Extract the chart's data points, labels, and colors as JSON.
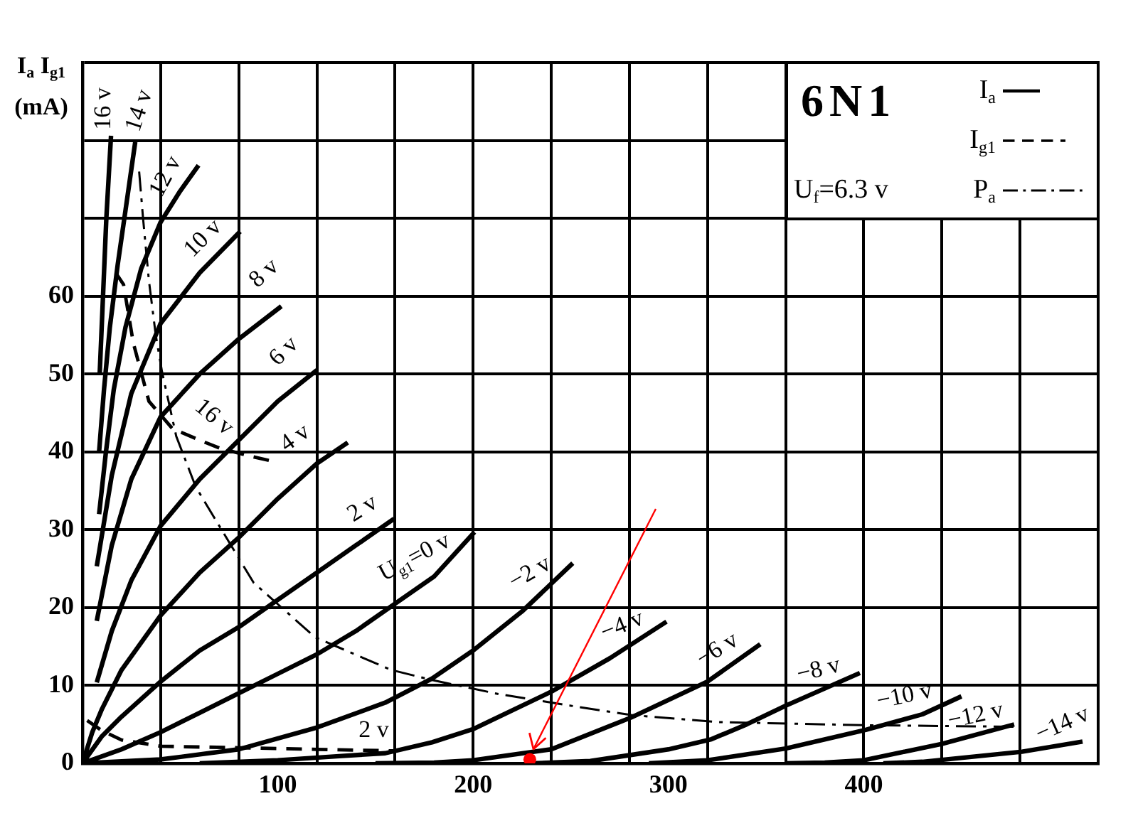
{
  "chart_data": {
    "type": "line",
    "title": "6N1",
    "ylabel": "I$_{a}$ I$_{g1}$ (mA)",
    "xlim": [
      0,
      520
    ],
    "ylim": [
      0,
      90
    ],
    "xticks": [
      {
        "value": 0,
        "label": null
      },
      {
        "value": 40,
        "label": null
      },
      {
        "value": 80,
        "label": null
      },
      100,
      {
        "value": 120,
        "label": null
      },
      {
        "value": 160,
        "label": null
      },
      200,
      {
        "value": 240,
        "label": null
      },
      {
        "value": 280,
        "label": null
      },
      300,
      {
        "value": 320,
        "label": null
      },
      {
        "value": 360,
        "label": null
      },
      400,
      {
        "value": 440,
        "label": null
      },
      {
        "value": 480,
        "label": null
      },
      {
        "value": 520,
        "label": null
      }
    ],
    "yticks": [
      0,
      10,
      20,
      30,
      40,
      50,
      60,
      {
        "value": 70,
        "label": null
      },
      {
        "value": 80,
        "label": null
      },
      {
        "value": 90,
        "label": null
      }
    ],
    "grid": true,
    "legend": "top right",
    "marker": "none",
    "series": [
      {
        "name": "I$_{a}$",
        "color": "#000000",
        "line_style": "solid",
        "x": [
          8.8,
          10.5,
          12.2,
          14.6,
          null,
          8.5,
          11,
          14,
          18,
          22,
          27,
          null,
          8.5,
          12,
          16,
          22,
          30,
          40,
          50,
          59.4,
          null,
          7.3,
          15,
          25,
          40,
          60,
          80.7,
          null,
          7.3,
          15,
          25,
          40,
          60,
          80,
          101.8,
          null,
          7.3,
          15,
          25,
          40,
          60,
          80,
          100,
          120,
          null,
          0,
          5,
          10,
          20,
          40,
          60,
          80,
          100,
          120,
          135.8,
          null,
          0,
          10,
          20,
          40,
          60,
          80,
          100,
          120,
          140,
          159.5,
          null,
          0,
          20,
          40,
          60,
          80,
          100,
          120,
          140,
          160,
          180,
          200.7,
          null,
          0,
          40,
          80,
          120,
          155,
          179,
          200,
          225,
          251,
          null,
          60,
          100,
          130,
          155,
          179,
          200,
          240,
          270,
          299,
          null,
          150,
          180,
          200,
          240,
          281,
          320,
          347,
          null,
          230,
          260,
          300,
          322,
          340,
          360,
          398,
          null,
          290,
          320,
          360,
          401,
          430,
          450,
          null,
          360,
          380,
          400,
          440,
          477,
          null,
          410,
          430,
          481,
          512
        ],
        "values": [
          50,
          60,
          70,
          80.6,
          null,
          40,
          48,
          56,
          64,
          71,
          79.8,
          null,
          32,
          40,
          48,
          56,
          63.5,
          69.5,
          73.5,
          76.8,
          null,
          25.3,
          37,
          47.5,
          56.5,
          63,
          68.3,
          null,
          18.3,
          28,
          36.5,
          44.5,
          50,
          54.5,
          58.7,
          null,
          10.4,
          17,
          23.5,
          30.5,
          36.5,
          41.5,
          46.5,
          50.5,
          null,
          0,
          4,
          7,
          12,
          19,
          24.5,
          29,
          34,
          38.5,
          41.2,
          null,
          0,
          3.5,
          6,
          10.5,
          14.5,
          17.5,
          21,
          24.5,
          28,
          31.4,
          null,
          0,
          1.8,
          4,
          6.5,
          9,
          11.5,
          14,
          17,
          20.5,
          24,
          29.7,
          null,
          0,
          0.5,
          1.8,
          4.6,
          7.8,
          10.9,
          14.5,
          19.5,
          25.7,
          null,
          0,
          0.4,
          0.9,
          1.3,
          2.7,
          4.4,
          9.2,
          13.5,
          18.2,
          null,
          0,
          0.1,
          0.4,
          1.8,
          5.9,
          10.5,
          15.3,
          null,
          0,
          0.3,
          1.8,
          3.1,
          5,
          7.4,
          11.6,
          null,
          0,
          0.4,
          1.9,
          4.3,
          6.3,
          8.6,
          null,
          0,
          0.1,
          0.4,
          2.5,
          5,
          null,
          0,
          0.2,
          1.5,
          2.8
        ]
      },
      {
        "name": "I$_{g1}$",
        "color": "#000000",
        "line_style": "dashed",
        "x": [
          17,
          21,
          26,
          34,
          46,
          60,
          70,
          85,
          99,
          null,
          2.4,
          10,
          20,
          40,
          80,
          120,
          160
        ],
        "values": [
          63,
          61.5,
          54,
          46.5,
          43,
          41.5,
          40.5,
          39.5,
          38.7,
          null,
          5.5,
          4.2,
          3,
          2.2,
          2,
          1.8,
          1.6
        ]
      },
      {
        "name": "P$_{a}$",
        "color": "#000000",
        "line_style": "dashdot",
        "x": [
          29,
          31,
          34,
          37.5,
          40.7,
          48,
          58,
          70,
          87.6,
          119,
          158,
          179,
          213,
          250,
          281,
          325,
          400,
          478
        ],
        "values": [
          76,
          70,
          62,
          55,
          50.3,
          42,
          35.5,
          30.5,
          23.2,
          16.2,
          12,
          10.7,
          8.9,
          7.4,
          6.2,
          5.3,
          4.9,
          4.7
        ]
      },
      {
        "type": "scatter",
        "color": "#ff0000",
        "marker": "circle",
        "x": [
          229
        ],
        "values": [
          0.5
        ]
      }
    ],
    "annotations": [
      "U$_{f}$=6.3 v",
      {
        "text": "16 v",
        "x": 14.6,
        "y": 80.6
      },
      {
        "text": "14 v",
        "x": 27,
        "y": 79.8
      },
      {
        "text": "12 v",
        "x": 59.4,
        "y": 76.8
      },
      {
        "text": "10 v",
        "x": 80.7,
        "y": 68.3
      },
      {
        "text": "8 v",
        "x": 101.8,
        "y": 58.7
      },
      {
        "text": "6 v",
        "x": 120,
        "y": 50.5
      },
      {
        "text": "4 v",
        "x": 135.8,
        "y": 41.2
      },
      {
        "text": "2 v",
        "x": 159.5,
        "y": 31.4
      },
      {
        "text": "U$_{g1}$=0 v",
        "x": 200.7,
        "y": 29.7
      },
      {
        "text": "−2 v",
        "x": 251,
        "y": 25.7
      },
      {
        "text": "−4 v",
        "x": 299,
        "y": 18.2
      },
      {
        "text": "−6 v",
        "x": 347,
        "y": 15.3
      },
      {
        "text": "−8 v",
        "x": 398,
        "y": 11.6
      },
      {
        "text": "−10 v",
        "x": 450,
        "y": 8.6
      },
      {
        "text": "−12 v",
        "x": 477,
        "y": 5
      },
      {
        "text": "−14 v",
        "x": 512,
        "y": 2.8
      },
      {
        "text": "16 v",
        "x": 60,
        "y": 41.5
      },
      {
        "text": "2 v",
        "x": 160,
        "y": 1.6
      }
    ]
  }
}
